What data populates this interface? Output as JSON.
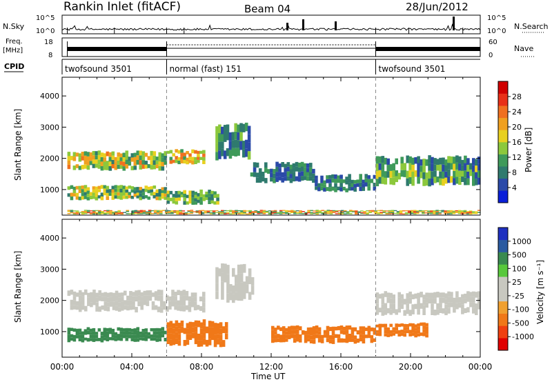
{
  "header": {
    "station": "Rankin Inlet (fitACF)",
    "beam": "Beam 04",
    "date": "28/Jun/2012"
  },
  "top_panels": {
    "nsky_label": "N.Sky",
    "nsky_ticks": [
      "10^5",
      "10^0"
    ],
    "nsearch_label": "N.Search",
    "nsearch_ticks": [
      "10^5",
      "10^0"
    ],
    "freq_label_1": "Freq.",
    "freq_label_2": "[MHz]",
    "freq_ticks": [
      "18",
      "8"
    ],
    "nave_label": "Nave",
    "nave_ticks": [
      "60",
      "0"
    ],
    "cpid_label": "CPID",
    "cpid_segments": [
      {
        "label": "twofsound 3501",
        "start": 0,
        "end": 6
      },
      {
        "label": "normal (fast) 151",
        "start": 6,
        "end": 18
      },
      {
        "label": "twofsound 3501",
        "start": 18,
        "end": 24
      }
    ]
  },
  "colors": {
    "power": [
      "#0a1fd8",
      "#2b4aa8",
      "#2f7a6e",
      "#3f9a5a",
      "#8cc83c",
      "#e8d020",
      "#f0a020",
      "#f07020",
      "#e83018",
      "#d00000"
    ],
    "velocity": [
      "#e00000",
      "#f04010",
      "#f07818",
      "#f0a030",
      "#c8c8c0",
      "#c8c8c0",
      "#58c83c",
      "#3a8a50",
      "#2a5aa0",
      "#1f30c0"
    ]
  },
  "chart_data": [
    {
      "type": "heatmap",
      "name": "power",
      "ylabel": "Slant Range [km]",
      "colorbar_label": "Power [dB]",
      "colorbar_ticks": [
        "28",
        "24",
        "20",
        "16",
        "12",
        "8",
        "4"
      ],
      "x_ticks": [
        "00:00",
        "04:00",
        "08:00",
        "12:00",
        "16:00",
        "20:00",
        "00:00"
      ],
      "y_ticks": [
        "4000",
        "3000",
        "2000",
        "1000"
      ],
      "xlim": [
        0,
        24
      ],
      "ylim": [
        180,
        4600
      ],
      "bands": [
        {
          "t0": 0.3,
          "t1": 6.0,
          "r0": 1600,
          "r1": 2250,
          "vmin": 8,
          "vmax": 22
        },
        {
          "t0": 6.0,
          "t1": 8.2,
          "r0": 1800,
          "r1": 2300,
          "vmin": 10,
          "vmax": 24
        },
        {
          "t0": 0.3,
          "t1": 6.0,
          "r0": 650,
          "r1": 1150,
          "vmin": 6,
          "vmax": 20
        },
        {
          "t0": 6.0,
          "t1": 9.0,
          "r0": 500,
          "r1": 1000,
          "vmin": 6,
          "vmax": 16
        },
        {
          "t0": 8.8,
          "t1": 10.8,
          "r0": 1900,
          "r1": 3200,
          "vmin": 4,
          "vmax": 14
        },
        {
          "t0": 10.8,
          "t1": 14.5,
          "r0": 1200,
          "r1": 1900,
          "vmin": 4,
          "vmax": 10
        },
        {
          "t0": 14.5,
          "t1": 18.0,
          "r0": 900,
          "r1": 1500,
          "vmin": 4,
          "vmax": 12
        },
        {
          "t0": 18.0,
          "t1": 24.0,
          "r0": 1100,
          "r1": 2100,
          "vmin": 4,
          "vmax": 16
        },
        {
          "t0": 0.3,
          "t1": 24.0,
          "r0": 200,
          "r1": 350,
          "vmin": 8,
          "vmax": 26
        }
      ]
    },
    {
      "type": "heatmap",
      "name": "velocity",
      "ylabel": "Slant Range [km]",
      "colorbar_label": "Velocity [m s⁻¹]",
      "colorbar_ticks": [
        "1000",
        "500",
        "100",
        "25",
        "-25",
        "-100",
        "-500",
        "-1000"
      ],
      "x_ticks": [
        "00:00",
        "04:00",
        "08:00",
        "12:00",
        "16:00",
        "20:00",
        "00:00"
      ],
      "xlabel": "Time UT",
      "y_ticks": [
        "4000",
        "3000",
        "2000",
        "1000"
      ],
      "xlim": [
        0,
        24
      ],
      "ylim": [
        180,
        4600
      ],
      "bands": [
        {
          "t0": 0.3,
          "t1": 8.2,
          "r0": 1600,
          "r1": 2350,
          "vmin": -25,
          "vmax": 25
        },
        {
          "t0": 0.3,
          "t1": 6.0,
          "r0": 650,
          "r1": 1150,
          "vmin": 100,
          "vmax": 200
        },
        {
          "t0": 6.0,
          "t1": 9.5,
          "r0": 500,
          "r1": 1400,
          "vmin": -500,
          "vmax": -100
        },
        {
          "t0": 8.8,
          "t1": 11.0,
          "r0": 1900,
          "r1": 3200,
          "vmin": -25,
          "vmax": 25
        },
        {
          "t0": 12.0,
          "t1": 18.0,
          "r0": 600,
          "r1": 1200,
          "vmin": -500,
          "vmax": -100
        },
        {
          "t0": 18.0,
          "t1": 24.0,
          "r0": 1500,
          "r1": 2300,
          "vmin": -25,
          "vmax": 25
        },
        {
          "t0": 18.0,
          "t1": 21.0,
          "r0": 800,
          "r1": 1300,
          "vmin": -500,
          "vmax": -100
        }
      ]
    }
  ]
}
